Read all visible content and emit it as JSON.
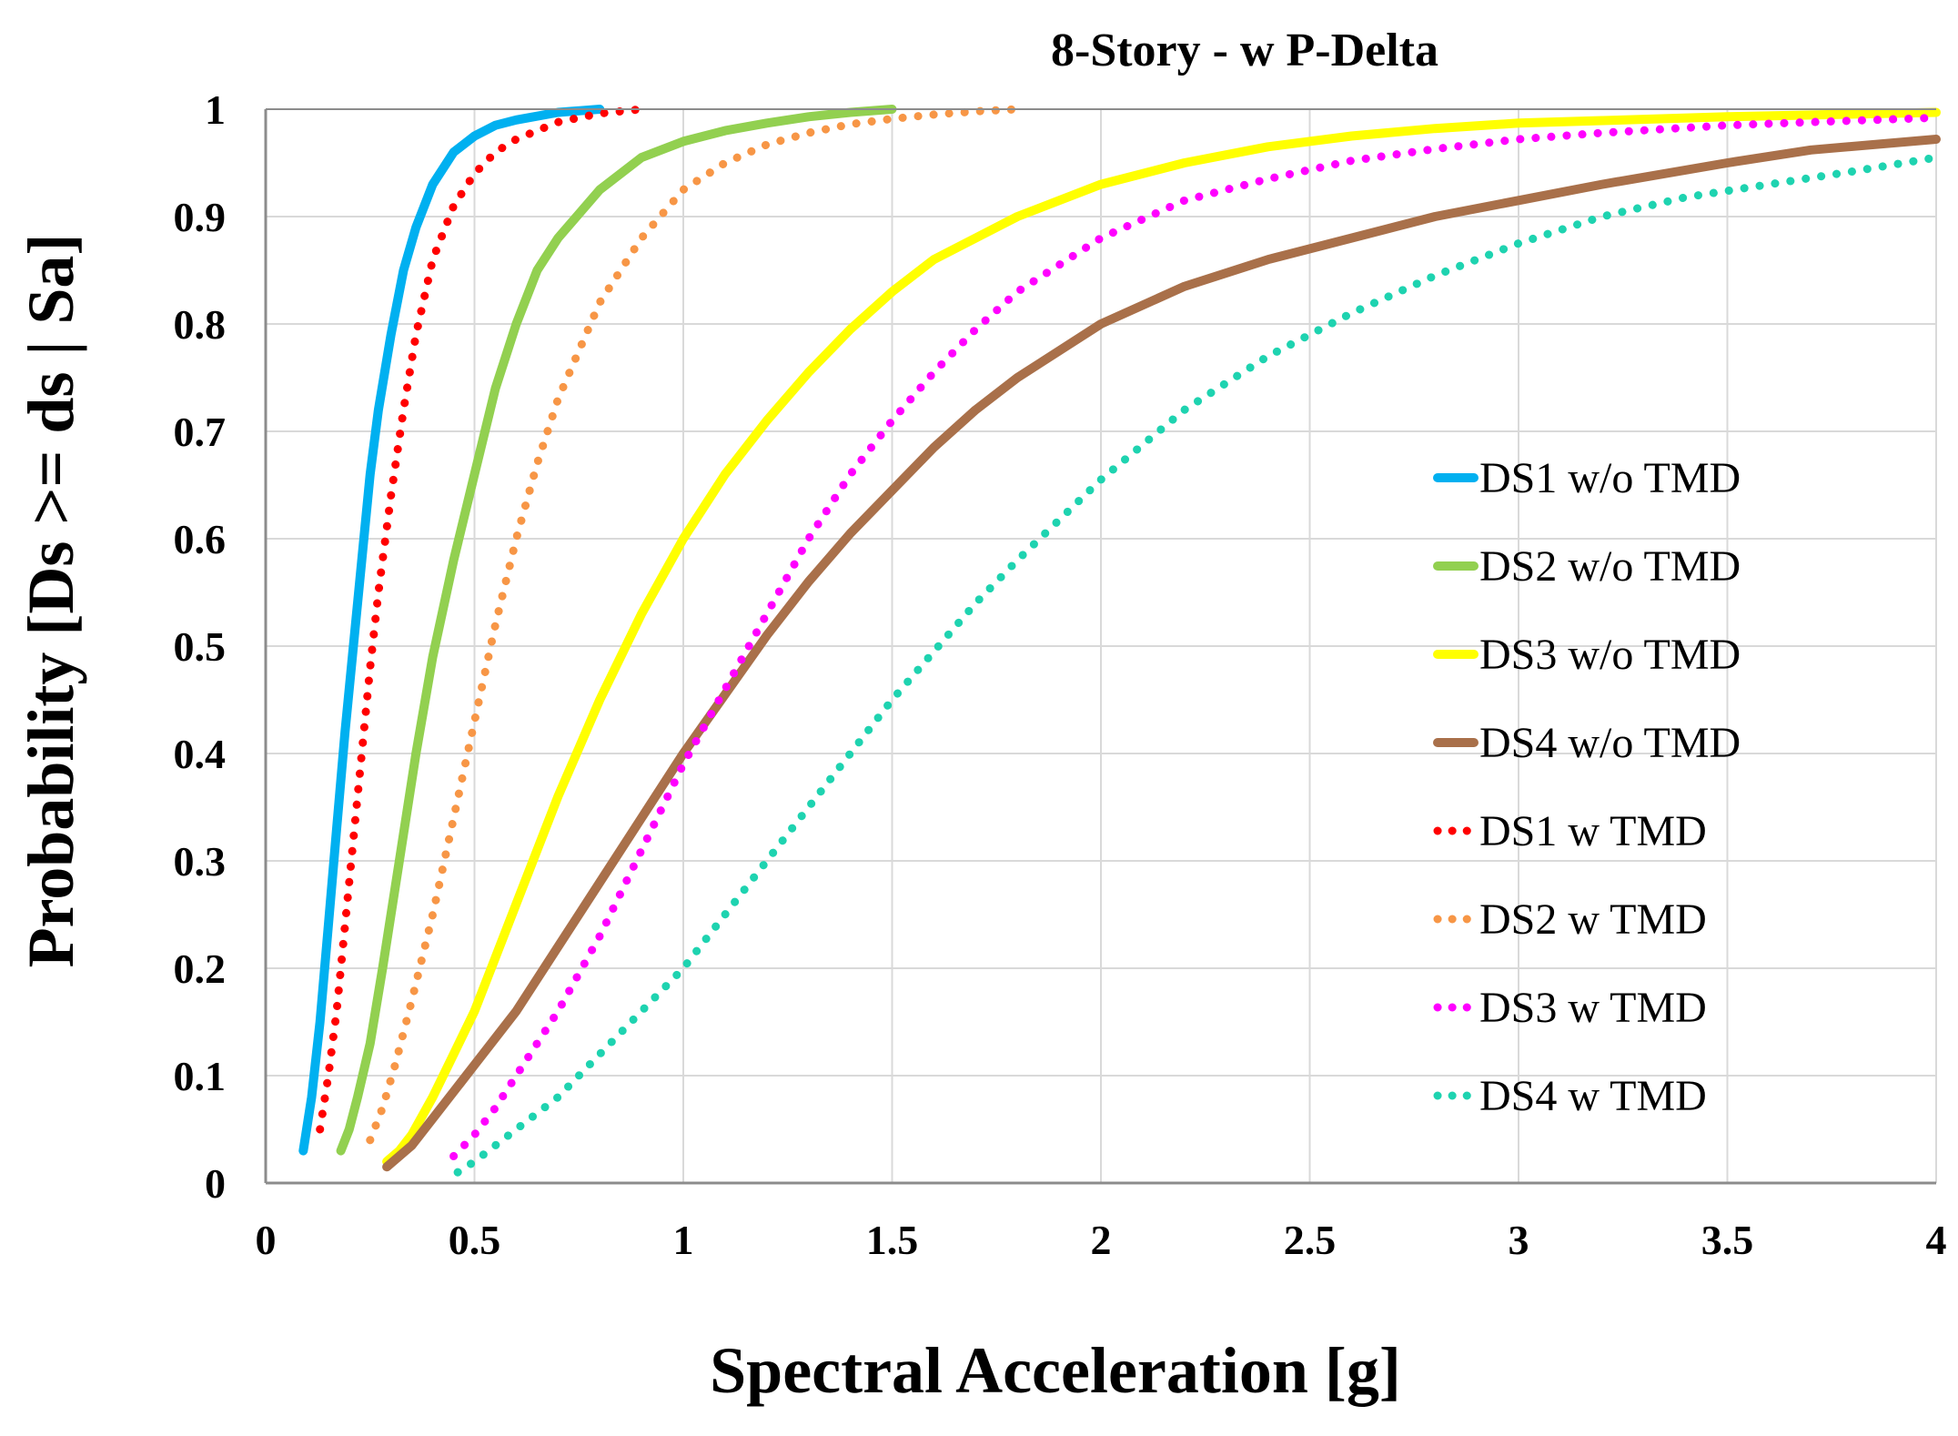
{
  "chart_data": {
    "type": "line",
    "title": "8-Story - w P-Delta",
    "xlabel": "Spectral Acceleration [g]",
    "ylabel": "Probability [Ds >= ds | Sa]",
    "xlim": [
      0,
      4
    ],
    "ylim": [
      0,
      1
    ],
    "x_ticks": [
      0,
      0.5,
      1,
      1.5,
      2,
      2.5,
      3,
      3.5,
      4
    ],
    "x_tick_labels": [
      "0",
      "0.5",
      "1",
      "1.5",
      "2",
      "2.5",
      "3",
      "3.5",
      "4"
    ],
    "y_ticks": [
      0,
      0.1,
      0.2,
      0.3,
      0.4,
      0.5,
      0.6,
      0.7,
      0.8,
      0.9,
      1
    ],
    "y_tick_labels": [
      "0",
      "0.1",
      "0.2",
      "0.3",
      "0.4",
      "0.5",
      "0.6",
      "0.7",
      "0.8",
      "0.9",
      "1"
    ],
    "grid": true,
    "legend_position": "right",
    "series": [
      {
        "name": "DS1 w/o TMD",
        "color": "#00B0F0",
        "style": "solid",
        "x": [
          0.09,
          0.11,
          0.13,
          0.15,
          0.17,
          0.19,
          0.21,
          0.23,
          0.25,
          0.27,
          0.3,
          0.33,
          0.36,
          0.4,
          0.45,
          0.5,
          0.55,
          0.6,
          0.7,
          0.8
        ],
        "y": [
          0.03,
          0.08,
          0.15,
          0.24,
          0.33,
          0.42,
          0.5,
          0.58,
          0.66,
          0.72,
          0.79,
          0.85,
          0.89,
          0.93,
          0.96,
          0.975,
          0.985,
          0.99,
          0.997,
          1.0
        ]
      },
      {
        "name": "DS2 w/o TMD",
        "color": "#92D050",
        "style": "solid",
        "x": [
          0.18,
          0.2,
          0.22,
          0.25,
          0.28,
          0.32,
          0.36,
          0.4,
          0.45,
          0.5,
          0.55,
          0.6,
          0.65,
          0.7,
          0.8,
          0.9,
          1.0,
          1.1,
          1.2,
          1.3,
          1.4,
          1.5
        ],
        "y": [
          0.03,
          0.05,
          0.08,
          0.13,
          0.2,
          0.3,
          0.4,
          0.49,
          0.58,
          0.66,
          0.74,
          0.8,
          0.85,
          0.88,
          0.925,
          0.955,
          0.97,
          0.98,
          0.987,
          0.993,
          0.997,
          1.0
        ]
      },
      {
        "name": "DS3 w/o TMD",
        "color": "#FFFF00",
        "style": "solid",
        "x": [
          0.29,
          0.32,
          0.35,
          0.4,
          0.45,
          0.5,
          0.55,
          0.6,
          0.7,
          0.8,
          0.9,
          1.0,
          1.1,
          1.2,
          1.3,
          1.4,
          1.5,
          1.6,
          1.8,
          2.0,
          2.2,
          2.4,
          2.6,
          2.8,
          3.0,
          3.5,
          4.0
        ],
        "y": [
          0.02,
          0.03,
          0.045,
          0.08,
          0.12,
          0.16,
          0.21,
          0.26,
          0.36,
          0.45,
          0.53,
          0.6,
          0.66,
          0.71,
          0.755,
          0.795,
          0.83,
          0.86,
          0.9,
          0.93,
          0.95,
          0.965,
          0.975,
          0.982,
          0.987,
          0.993,
          0.997
        ]
      },
      {
        "name": "DS4 w/o TMD",
        "color": "#A9704A",
        "style": "solid",
        "x": [
          0.29,
          0.35,
          0.4,
          0.5,
          0.6,
          0.7,
          0.8,
          0.9,
          1.0,
          1.1,
          1.2,
          1.3,
          1.4,
          1.5,
          1.6,
          1.7,
          1.8,
          2.0,
          2.2,
          2.4,
          2.6,
          2.8,
          3.0,
          3.2,
          3.5,
          3.7,
          4.0
        ],
        "y": [
          0.015,
          0.035,
          0.06,
          0.11,
          0.16,
          0.22,
          0.28,
          0.34,
          0.4,
          0.455,
          0.51,
          0.56,
          0.605,
          0.645,
          0.685,
          0.72,
          0.75,
          0.8,
          0.835,
          0.86,
          0.88,
          0.9,
          0.915,
          0.93,
          0.95,
          0.962,
          0.972
        ]
      },
      {
        "name": "DS1 w TMD",
        "color": "#FF0000",
        "style": "dotted",
        "x": [
          0.13,
          0.15,
          0.17,
          0.19,
          0.21,
          0.23,
          0.25,
          0.27,
          0.3,
          0.33,
          0.36,
          0.4,
          0.45,
          0.5,
          0.55,
          0.6,
          0.7,
          0.8,
          0.9
        ],
        "y": [
          0.05,
          0.1,
          0.16,
          0.24,
          0.32,
          0.4,
          0.48,
          0.55,
          0.64,
          0.72,
          0.79,
          0.86,
          0.91,
          0.94,
          0.96,
          0.972,
          0.988,
          0.996,
          1.0
        ]
      },
      {
        "name": "DS2 w TMD",
        "color": "#F79646",
        "style": "dotted",
        "x": [
          0.25,
          0.28,
          0.31,
          0.35,
          0.4,
          0.45,
          0.5,
          0.55,
          0.6,
          0.65,
          0.7,
          0.8,
          0.9,
          1.0,
          1.1,
          1.2,
          1.3,
          1.4,
          1.5,
          1.6,
          1.7,
          1.8
        ],
        "y": [
          0.04,
          0.07,
          0.11,
          0.17,
          0.25,
          0.34,
          0.43,
          0.52,
          0.6,
          0.67,
          0.73,
          0.82,
          0.88,
          0.925,
          0.95,
          0.967,
          0.978,
          0.986,
          0.991,
          0.995,
          0.998,
          1.0
        ]
      },
      {
        "name": "DS3 w TMD",
        "color": "#FF00FF",
        "style": "dotted",
        "x": [
          0.45,
          0.5,
          0.55,
          0.6,
          0.7,
          0.8,
          0.9,
          1.0,
          1.1,
          1.2,
          1.3,
          1.4,
          1.5,
          1.6,
          1.7,
          1.8,
          2.0,
          2.2,
          2.4,
          2.6,
          2.8,
          3.0,
          3.2,
          3.5,
          3.7,
          4.0
        ],
        "y": [
          0.025,
          0.045,
          0.07,
          0.1,
          0.16,
          0.23,
          0.31,
          0.39,
          0.46,
          0.53,
          0.6,
          0.66,
          0.71,
          0.755,
          0.795,
          0.83,
          0.88,
          0.915,
          0.935,
          0.952,
          0.963,
          0.972,
          0.978,
          0.985,
          0.988,
          0.992
        ]
      },
      {
        "name": "DS4 w TMD",
        "color": "#1ED3B0",
        "style": "dotted",
        "x": [
          0.46,
          0.5,
          0.6,
          0.7,
          0.8,
          0.9,
          1.0,
          1.1,
          1.2,
          1.3,
          1.4,
          1.5,
          1.6,
          1.7,
          1.8,
          2.0,
          2.2,
          2.4,
          2.6,
          2.8,
          3.0,
          3.2,
          3.4,
          3.6,
          3.8,
          4.0
        ],
        "y": [
          0.01,
          0.02,
          0.05,
          0.08,
          0.12,
          0.16,
          0.2,
          0.25,
          0.3,
          0.35,
          0.4,
          0.45,
          0.495,
          0.54,
          0.58,
          0.655,
          0.72,
          0.77,
          0.81,
          0.845,
          0.875,
          0.9,
          0.918,
          0.93,
          0.942,
          0.955
        ]
      }
    ]
  }
}
